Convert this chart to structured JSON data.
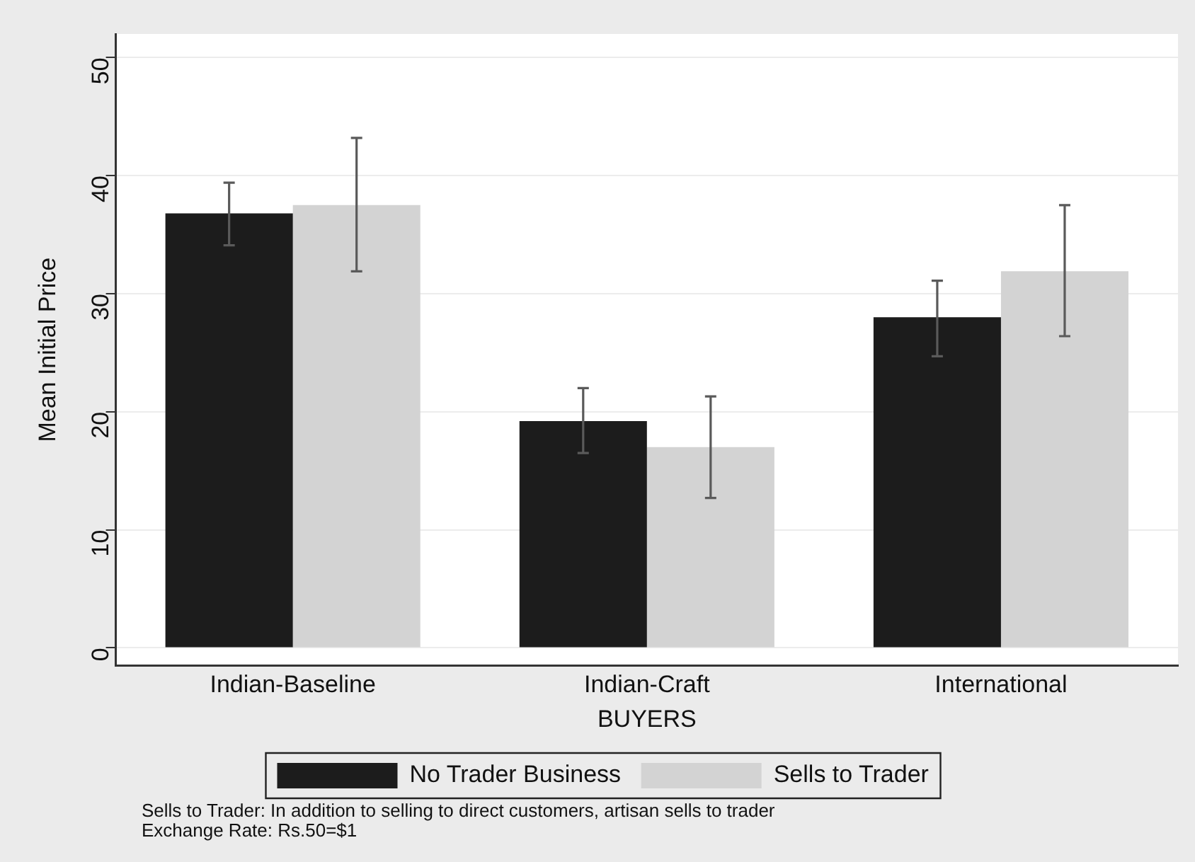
{
  "chart_data": {
    "type": "bar",
    "xlabel": "BUYERS",
    "ylabel": "Mean Initial Price",
    "categories": [
      "Indian-Baseline",
      "Indian-Craft",
      "International"
    ],
    "series": [
      {
        "name": "No Trader Business",
        "color": "#1c1c1c",
        "values": [
          36.8,
          19.2,
          28.0
        ],
        "errors": [
          [
            34.1,
            39.4
          ],
          [
            16.5,
            22.0
          ],
          [
            24.7,
            31.1
          ]
        ]
      },
      {
        "name": "Sells to Trader",
        "color": "#d3d3d3",
        "values": [
          37.5,
          17.0,
          31.9
        ],
        "errors": [
          [
            31.9,
            43.2
          ],
          [
            12.7,
            21.3
          ],
          [
            26.4,
            37.5
          ]
        ]
      }
    ],
    "ylim": [
      -1.5,
      52
    ],
    "yticks": [
      0,
      10,
      20,
      30,
      40,
      50
    ],
    "grid": "y",
    "legend": "bottom",
    "annotations": [
      "Sells to Trader: In addition to selling to direct customers, artisan sells to trader",
      "Exchange Rate: Rs.50=$1"
    ]
  }
}
